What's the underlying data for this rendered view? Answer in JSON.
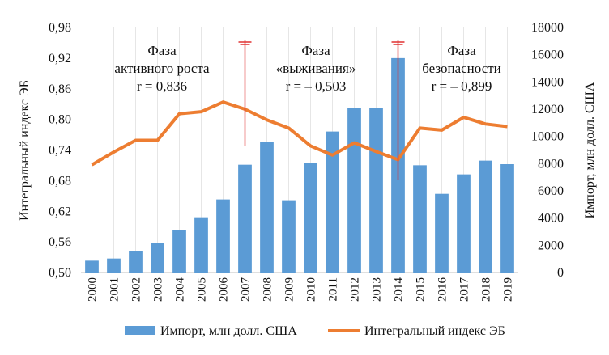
{
  "chart_data": {
    "type": "bar+line",
    "categories": [
      "2000",
      "2001",
      "2002",
      "2003",
      "2004",
      "2005",
      "2006",
      "2007",
      "2008",
      "2009",
      "2010",
      "2011",
      "2012",
      "2013",
      "2014",
      "2015",
      "2016",
      "2017",
      "2018",
      "2019"
    ],
    "series": [
      {
        "name": "Импорт, млн долл. США",
        "type": "bar",
        "axis": "right",
        "color": "#5b9bd5",
        "values": [
          870,
          1030,
          1600,
          2140,
          3130,
          4060,
          5370,
          7920,
          9580,
          5310,
          8060,
          10360,
          12080,
          12080,
          15750,
          7880,
          5780,
          7210,
          8220,
          7960
        ]
      },
      {
        "name": "Интегральный индекс ЭБ",
        "type": "line",
        "axis": "left",
        "color": "#ed7d31",
        "values": [
          0.711,
          0.736,
          0.759,
          0.759,
          0.811,
          0.815,
          0.834,
          0.82,
          0.799,
          0.783,
          0.748,
          0.73,
          0.754,
          0.737,
          0.721,
          0.783,
          0.779,
          0.804,
          0.791,
          0.786
        ]
      }
    ],
    "y_left": {
      "label": "Интегральный индекс ЭБ",
      "range": [
        0.5,
        0.98
      ],
      "ticks": [
        "0,50",
        "0,56",
        "0,62",
        "0,68",
        "0,74",
        "0,80",
        "0,86",
        "0,92",
        "0,98"
      ]
    },
    "y_right": {
      "label": "Импорт, млн долл. США",
      "range": [
        0,
        18000
      ],
      "ticks": [
        "0",
        "2000",
        "4000",
        "6000",
        "8000",
        "10000",
        "12000",
        "14000",
        "16000",
        "18000"
      ]
    },
    "phase_dividers": {
      "years": [
        "2007",
        "2014"
      ],
      "color": "#e03030"
    },
    "annotations": [
      {
        "lines": [
          "Фаза",
          "активного роста",
          "r = 0,836"
        ]
      },
      {
        "lines": [
          "Фаза",
          "«выживания»",
          "r = – 0,503"
        ]
      },
      {
        "lines": [
          "Фаза",
          "безопасности",
          "r = – 0,899"
        ]
      }
    ],
    "legend_position": "bottom",
    "grid": "vertical"
  }
}
